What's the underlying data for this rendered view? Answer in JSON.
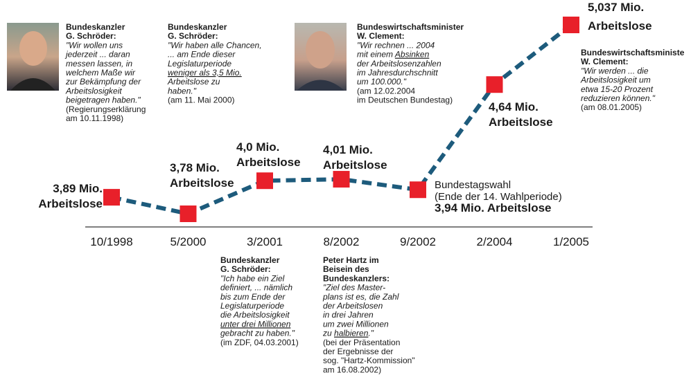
{
  "chart_data": {
    "type": "line",
    "categories": [
      "10/1998",
      "5/2000",
      "3/2001",
      "8/2002",
      "9/2002",
      "2/2004",
      "1/2005"
    ],
    "values": [
      3.89,
      3.78,
      4.0,
      4.01,
      3.94,
      4.64,
      5.037
    ],
    "value_labels": [
      [
        "3,89 Mio.",
        "Arbeitslose"
      ],
      [
        "3,78 Mio.",
        "Arbeitslose"
      ],
      [
        "4,0 Mio.",
        "Arbeitslose"
      ],
      [
        "4,01 Mio.",
        "Arbeitslose"
      ],
      [
        "3,94 Mio. Arbeitslose"
      ],
      [
        "4,64 Mio.",
        "Arbeitslose"
      ],
      [
        "5,037 Mio.",
        "Arbeitslose"
      ]
    ],
    "annotations": [
      "Bundestagswahl",
      "(Ende der 14. Wahlperiode)"
    ],
    "line_color": "#1d5b7c",
    "marker_color": "#e8202a",
    "quotes": [
      {
        "speaker": [
          "Bundeskanzler",
          "G. Schröder:"
        ],
        "quote": [
          "\"Wir wollen uns",
          "jederzeit ... daran",
          "messen lassen, in",
          "welchem Maße wir",
          "zur Bekämpfung der",
          "Arbeitslosigkeit",
          "beigetragen haben.\""
        ],
        "source": [
          "(Regierungserklärung",
          "am 10.11.1998)"
        ]
      },
      {
        "speaker": [
          "Bundeskanzler",
          "G. Schröder:"
        ],
        "quote": [
          "\"Wir haben alle Chancen,",
          "... am Ende dieser",
          "Legislaturperiode",
          [
            "",
            "weniger als 3,5 Mio."
          ],
          "Arbeitslose zu",
          "haben.\""
        ],
        "source": [
          "(am 11. Mai 2000)"
        ]
      },
      {
        "speaker": [
          "Bundeswirtschaftsminister",
          "W. Clement:"
        ],
        "quote": [
          "\"Wir rechnen ... 2004",
          [
            "mit einem ",
            "Absinken"
          ],
          "der Arbeitslosenzahlen",
          "im Jahresdurchschnitt",
          "um 100.000.\""
        ],
        "source": [
          "(am 12.02.2004",
          "im Deutschen Bundestag)"
        ]
      },
      {
        "speaker": [
          "Bundeswirtschaftsministe",
          "W. Clement:"
        ],
        "quote": [
          "\"Wir werden ... die",
          "Arbeitslosigkeit um",
          "etwa 15-20 Prozent",
          "reduzieren können.\""
        ],
        "source": [
          "(am 08.01.2005)"
        ]
      },
      {
        "speaker": [
          "Bundeskanzler",
          "G. Schröder:"
        ],
        "quote": [
          "\"Ich habe ein Ziel",
          "definiert, ... nämlich",
          "bis zum Ende der",
          "Legislaturperiode",
          "die Arbeitslosigkeit",
          [
            "",
            "unter drei Millionen"
          ],
          "gebracht zu haben.\""
        ],
        "source": [
          "(im ZDF, 04.03.2001)"
        ]
      },
      {
        "speaker": [
          "Peter Hartz im",
          "Beisein des",
          "Bundeskanzlers:"
        ],
        "quote": [
          "\"Ziel des Master-",
          "plans ist es, die Zahl",
          "der Arbeitslosen",
          "in drei Jahren",
          "um zwei Millionen",
          [
            "zu ",
            "halbieren",
            ".\""
          ]
        ],
        "source": [
          "(bei der Präsentation",
          "der Ergebnisse der",
          "sog. \"Hartz-Kommission\"",
          "am 16.08.2002)"
        ]
      }
    ]
  }
}
